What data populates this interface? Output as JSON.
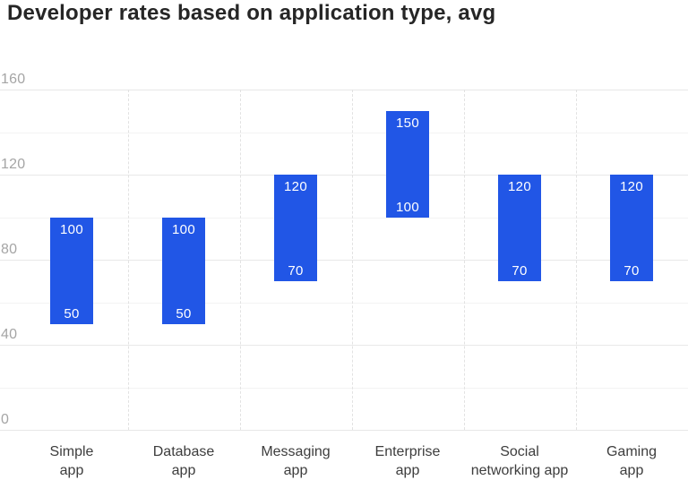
{
  "chart_data": {
    "type": "bar",
    "subtype": "floating-range-column",
    "title": "Developer rates based on application type, avg",
    "xlabel": "",
    "ylabel": "",
    "categories": [
      "Simple app",
      "Database app",
      "Messaging app",
      "Enterprise app",
      "Social networking app",
      "Gaming app"
    ],
    "category_label_lines": [
      [
        "Simple",
        "app"
      ],
      [
        "Database",
        "app"
      ],
      [
        "Messaging",
        "app"
      ],
      [
        "Enterprise",
        "app"
      ],
      [
        "Social",
        "networking app"
      ],
      [
        "Gaming",
        "app"
      ]
    ],
    "points": [
      {
        "category": "Simple app",
        "low": 50,
        "high": 100
      },
      {
        "category": "Database app",
        "low": 50,
        "high": 100
      },
      {
        "category": "Messaging app",
        "low": 70,
        "high": 120
      },
      {
        "category": "Enterprise app",
        "low": 100,
        "high": 150
      },
      {
        "category": "Social networking app",
        "low": 70,
        "high": 120
      },
      {
        "category": "Gaming app",
        "low": 70,
        "high": 120
      }
    ],
    "yaxis": {
      "min": 0,
      "max": 160,
      "tick_step": 40,
      "grid_step": 20,
      "tick_values": [
        0,
        40,
        80,
        120,
        160
      ],
      "tick_labels": [
        "0",
        "40",
        "80",
        "120",
        "160"
      ]
    },
    "grid": "horizontal solid every 20, vertical dashed between categories",
    "legend": false,
    "bar_value_labels": "high value inside top, low value inside bottom",
    "colors": {
      "bar": "#2156e6",
      "bar_label": "#ffffff",
      "title": "#262626",
      "axis_tick_label": "#a5a5a5",
      "category_label": "#3d3d3d",
      "grid_major": "#e8e8e8",
      "grid_minor": "#f3f3f3",
      "grid_vertical": "#e2e2e2",
      "background": "#ffffff"
    }
  }
}
